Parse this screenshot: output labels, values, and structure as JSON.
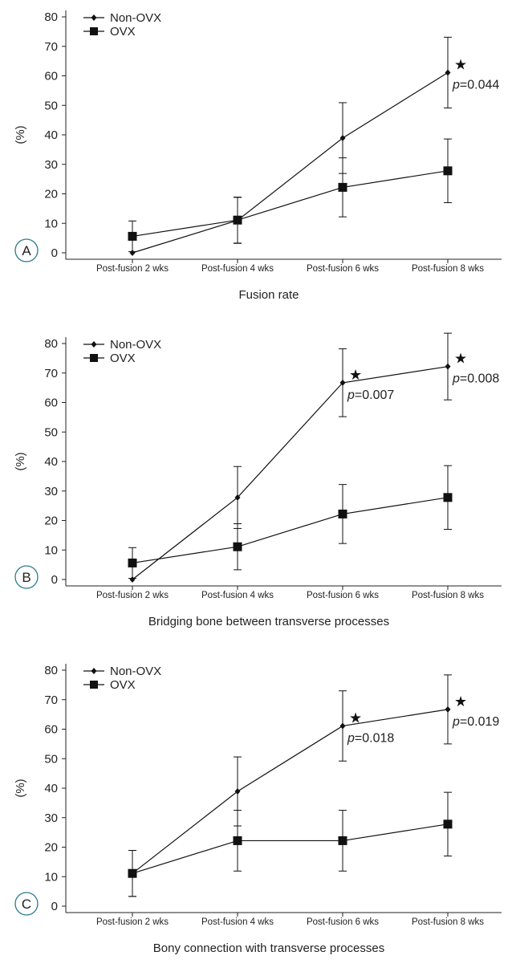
{
  "figure": {
    "series_names": [
      "Non-OVX",
      "OVX"
    ],
    "categories": [
      "Post-fusion 2 wks",
      "Post-fusion 4 wks",
      "Post-fusion 6 wks",
      "Post-fusion 8 wks"
    ]
  },
  "chart_data": [
    {
      "type": "line",
      "panel_label": "A",
      "title": "Fusion rate",
      "xlabel": "Fusion rate",
      "ylabel": "(%)",
      "ylim": [
        0,
        80
      ],
      "yticks": [
        0,
        10,
        20,
        30,
        40,
        50,
        60,
        70,
        80
      ],
      "categories": [
        "Post-fusion 2 wks",
        "Post-fusion 4 wks",
        "Post-fusion 6 wks",
        "Post-fusion 8 wks"
      ],
      "legend_position": "top-left",
      "grid": false,
      "series": [
        {
          "name": "Non-OVX",
          "marker": "diamond",
          "values": [
            0,
            11,
            38.9,
            61.1
          ],
          "error": [
            null,
            7.8,
            12,
            12
          ]
        },
        {
          "name": "OVX",
          "marker": "square",
          "values": [
            5.6,
            11.1,
            22.2,
            27.8
          ],
          "error": [
            5.2,
            7.8,
            10,
            10.8
          ]
        }
      ],
      "annotations": [
        {
          "category_index": 3,
          "series": "Non-OVX",
          "star": "★",
          "p_label": "p",
          "p_value": "=0.044"
        }
      ]
    },
    {
      "type": "line",
      "panel_label": "B",
      "title": "Bridging bone between transverse processes",
      "xlabel": "Bridging bone between transverse processes",
      "ylabel": "(%)",
      "ylim": [
        0,
        80
      ],
      "yticks": [
        0,
        10,
        20,
        30,
        40,
        50,
        60,
        70,
        80
      ],
      "categories": [
        "Post-fusion 2 wks",
        "Post-fusion 4 wks",
        "Post-fusion 6 wks",
        "Post-fusion 8 wks"
      ],
      "legend_position": "top-left",
      "grid": false,
      "series": [
        {
          "name": "Non-OVX",
          "marker": "diamond",
          "values": [
            0,
            27.8,
            66.7,
            72.2
          ],
          "error": [
            null,
            10.5,
            11.5,
            11.3
          ]
        },
        {
          "name": "OVX",
          "marker": "square",
          "values": [
            5.6,
            11.1,
            22.2,
            27.8
          ],
          "error": [
            5.2,
            7.8,
            10,
            10.8
          ]
        }
      ],
      "annotations": [
        {
          "category_index": 2,
          "series": "Non-OVX",
          "star": "★",
          "p_label": "p",
          "p_value": "=0.007"
        },
        {
          "category_index": 3,
          "series": "Non-OVX",
          "star": "★",
          "p_label": "p",
          "p_value": "=0.008"
        }
      ]
    },
    {
      "type": "line",
      "panel_label": "C",
      "title": "Bony connection with transverse processes",
      "xlabel": "Bony connection with transverse processes",
      "ylabel": "(%)",
      "ylim": [
        0,
        80
      ],
      "yticks": [
        0,
        10,
        20,
        30,
        40,
        50,
        60,
        70,
        80
      ],
      "categories": [
        "Post-fusion 2 wks",
        "Post-fusion 4 wks",
        "Post-fusion 6 wks",
        "Post-fusion 8 wks"
      ],
      "legend_position": "top-left",
      "grid": false,
      "series": [
        {
          "name": "Non-OVX",
          "marker": "diamond",
          "values": [
            11.1,
            38.9,
            61.1,
            66.7
          ],
          "error": [
            7.8,
            11.7,
            11.9,
            11.7
          ]
        },
        {
          "name": "OVX",
          "marker": "square",
          "values": [
            11.1,
            22.2,
            22.2,
            27.8
          ],
          "error": [
            7.8,
            10.3,
            10.3,
            10.8
          ]
        }
      ],
      "annotations": [
        {
          "category_index": 2,
          "series": "Non-OVX",
          "star": "★",
          "p_label": "p",
          "p_value": "=0.018"
        },
        {
          "category_index": 3,
          "series": "Non-OVX",
          "star": "★",
          "p_label": "p",
          "p_value": "=0.019"
        }
      ]
    }
  ]
}
